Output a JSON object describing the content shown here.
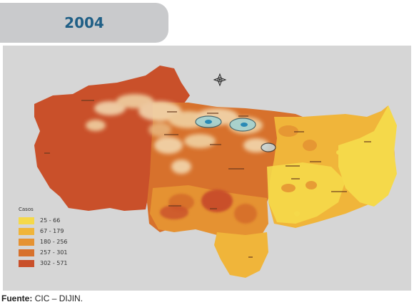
{
  "header": {
    "year": "2004"
  },
  "map": {
    "legend": {
      "title": "Casos",
      "items": [
        {
          "label": "25 - 66",
          "color": "#f5d94a"
        },
        {
          "label": "67 - 179",
          "color": "#f0b53a"
        },
        {
          "label": "180 - 256",
          "color": "#e59232"
        },
        {
          "label": "257 - 301",
          "color": "#d7712c"
        },
        {
          "label": "302 - 571",
          "color": "#c9502a"
        }
      ]
    },
    "compass_icon": "compass-rose-icon"
  },
  "footer": {
    "source_label": "Fuente:",
    "source_text": "CIC – DIJIN."
  }
}
